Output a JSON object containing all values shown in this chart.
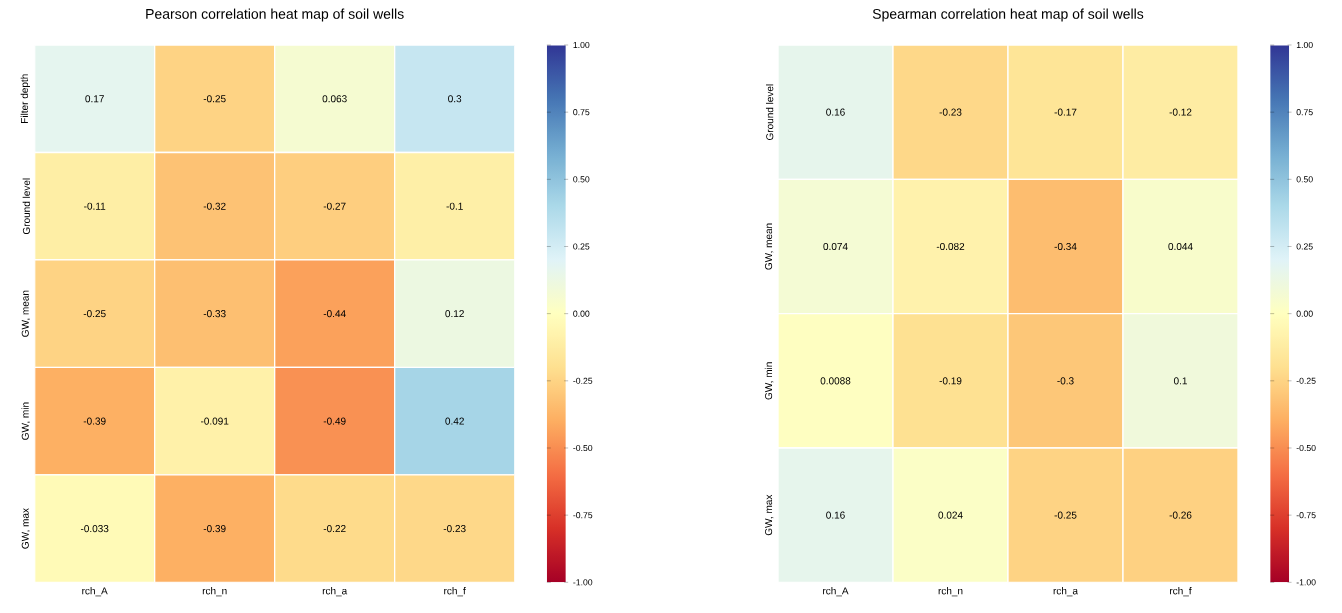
{
  "chart_data": [
    {
      "type": "heatmap",
      "title": "Pearson correlation heat map of soil wells",
      "categories": [
        "rch_A",
        "rch_n",
        "rch_a",
        "rch_f"
      ],
      "y_categories": [
        "Filter depth",
        "Ground level",
        "GW, mean",
        "GW, min",
        "GW, max"
      ],
      "cells": [
        [
          0.17,
          -0.25,
          0.063,
          0.3
        ],
        [
          -0.11,
          -0.32,
          -0.27,
          -0.1
        ],
        [
          -0.25,
          -0.33,
          -0.44,
          0.12
        ],
        [
          -0.39,
          -0.091,
          -0.49,
          0.42
        ],
        [
          -0.033,
          -0.39,
          -0.22,
          -0.23
        ]
      ],
      "clim": [
        -1,
        1
      ],
      "cticks": [
        {
          "value": -1,
          "label": "-1.00"
        },
        {
          "value": -0.75,
          "label": "-0.75"
        },
        {
          "value": -0.5,
          "label": "-0.50"
        },
        {
          "value": -0.25,
          "label": "-0.25"
        },
        {
          "value": 0,
          "label": "0.00"
        },
        {
          "value": 0.25,
          "label": "0.25"
        },
        {
          "value": 0.5,
          "label": "0.50"
        },
        {
          "value": 0.75,
          "label": "0.75"
        },
        {
          "value": 1,
          "label": "1.00"
        }
      ],
      "data_labels": true
    },
    {
      "type": "heatmap",
      "title": "Spearman correlation heat map of soil wells",
      "categories": [
        "rch_A",
        "rch_n",
        "rch_a",
        "rch_f"
      ],
      "y_categories": [
        "Ground level",
        "GW, mean",
        "GW, min",
        "GW, max"
      ],
      "cells": [
        [
          0.16,
          -0.23,
          -0.17,
          -0.12
        ],
        [
          0.074,
          -0.082,
          -0.34,
          0.044
        ],
        [
          0.0088,
          -0.19,
          -0.3,
          0.1
        ],
        [
          0.16,
          0.024,
          -0.25,
          -0.26
        ]
      ],
      "clim": [
        -1,
        1
      ],
      "cticks": [
        {
          "value": -1,
          "label": "-1.00"
        },
        {
          "value": -0.75,
          "label": "-0.75"
        },
        {
          "value": -0.5,
          "label": "-0.50"
        },
        {
          "value": -0.25,
          "label": "-0.25"
        },
        {
          "value": 0,
          "label": "0.00"
        },
        {
          "value": 0.25,
          "label": "0.25"
        },
        {
          "value": 0.5,
          "label": "0.50"
        },
        {
          "value": 0.75,
          "label": "0.75"
        },
        {
          "value": 1,
          "label": "1.00"
        }
      ],
      "data_labels": true
    }
  ]
}
